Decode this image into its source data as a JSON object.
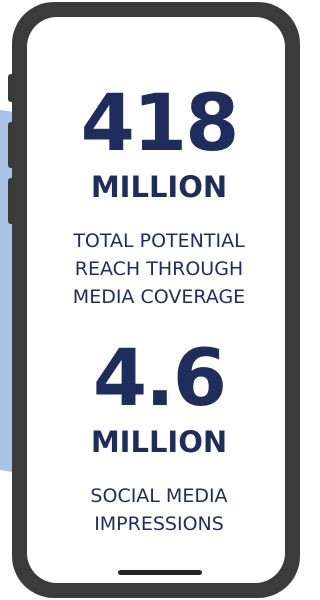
{
  "stats": [
    {
      "number": "418",
      "unit": "MILLION",
      "description": [
        "TOTAL POTENTIAL",
        "REACH THROUGH",
        "MEDIA COVERAGE"
      ]
    },
    {
      "number": "4.6",
      "unit": "MILLION",
      "description": [
        "SOCIAL MEDIA",
        "IMPRESSIONS"
      ]
    }
  ]
}
